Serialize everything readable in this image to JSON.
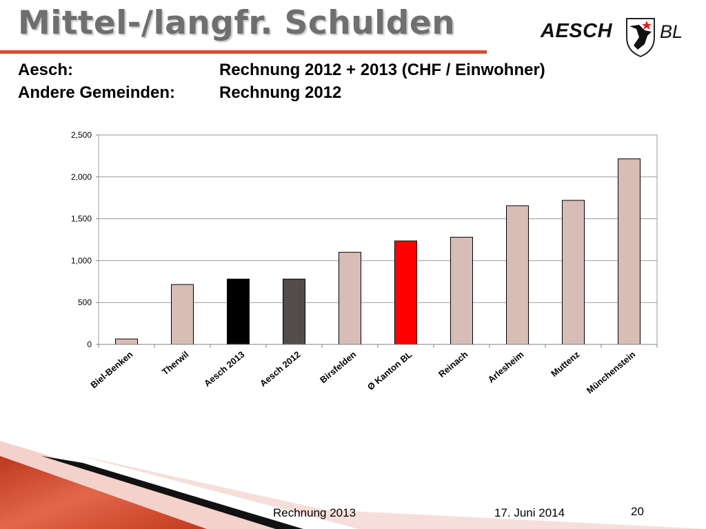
{
  "slide": {
    "title": "Mittel-/langfr. Schulden",
    "subtitle_rows": [
      {
        "label": "Aesch:",
        "value": "Rechnung 2012 + 2013 (CHF / Einwohner)"
      },
      {
        "label": "Andere Gemeinden:",
        "value": "Rechnung 2012"
      }
    ]
  },
  "logo": {
    "text_main": "AESCH",
    "text_suffix": "BL"
  },
  "footer": {
    "left": "Rechnung 2013",
    "date": "17. Juni 2014",
    "page": "20"
  },
  "colors": {
    "accent_rule": "#d44f2c",
    "bar_default": "#d8bcb6",
    "bar_aesch_2013": "#000000",
    "bar_aesch_2012": "#524c4c",
    "bar_kanton": "#ff0000"
  },
  "chart_data": {
    "type": "bar",
    "categories": [
      "Biel-Benken",
      "Therwil",
      "Aesch 2013",
      "Aesch 2012",
      "Birsfelden",
      "Ø Kanton BL",
      "Reinach",
      "Arlesheim",
      "Muttenz",
      "Münchenstein"
    ],
    "values": [
      65,
      715,
      780,
      780,
      1100,
      1235,
      1280,
      1655,
      1720,
      2215
    ],
    "bar_colors": [
      "#d8bcb6",
      "#d8bcb6",
      "#000000",
      "#524c4c",
      "#d8bcb6",
      "#ff0000",
      "#d8bcb6",
      "#d8bcb6",
      "#d8bcb6",
      "#d8bcb6"
    ],
    "ylim": [
      0,
      2500
    ],
    "yticks": [
      0,
      500,
      1000,
      1500,
      2000,
      2500
    ],
    "ytick_labels": [
      "0",
      "500",
      "1,000",
      "1,500",
      "2,000",
      "2,500"
    ],
    "grid": true,
    "legend": "none",
    "title": "",
    "xlabel": "",
    "ylabel": ""
  }
}
